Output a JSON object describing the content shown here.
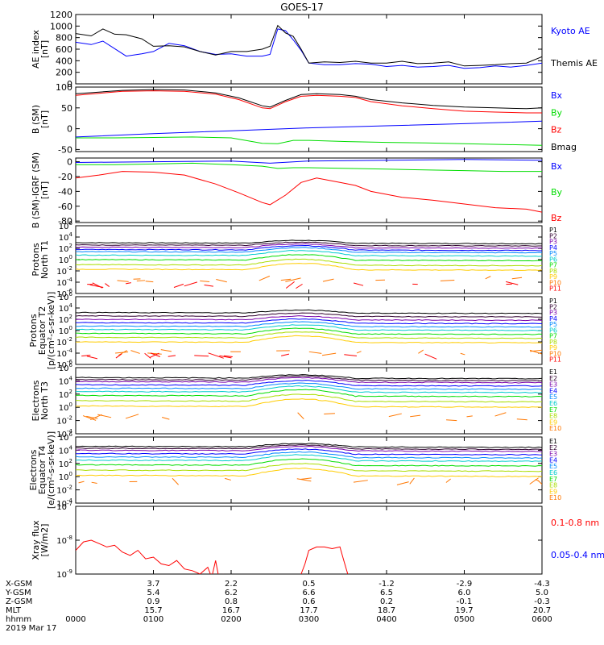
{
  "title": "GOES-17",
  "colors": {
    "black": "#000000",
    "blue": "#0000ff",
    "green": "#00dd00",
    "red": "#ff0000",
    "p": [
      "#000000",
      "#300030",
      "#7a00aa",
      "#0000ff",
      "#0088ff",
      "#00cccc",
      "#00dd00",
      "#aadd00",
      "#ffcc00",
      "#ff7700",
      "#ff0000",
      "#cc0000"
    ],
    "e": [
      "#000000",
      "#300030",
      "#7a00aa",
      "#0000ff",
      "#0088ff",
      "#00cccc",
      "#00dd00",
      "#aadd00",
      "#ffcc00",
      "#ff7700",
      "#cc0000"
    ]
  },
  "chart_data": [
    {
      "type": "line",
      "ylabel": [
        "AE index",
        "[nT]"
      ],
      "yticks": [
        "1200",
        "1000",
        "800",
        "600",
        "400",
        "200",
        "0"
      ],
      "ylim": [
        0,
        1200
      ],
      "legend": [
        {
          "label": "Kyoto AE",
          "color": "blue"
        },
        {
          "label": "Themis AE",
          "color": "black"
        }
      ],
      "series": [
        {
          "name": "Kyoto AE",
          "color": "blue",
          "x": [
            0,
            0.2,
            0.35,
            0.5,
            0.65,
            0.85,
            1.0,
            1.2,
            1.4,
            1.6,
            1.8,
            2.0,
            2.2,
            2.4,
            2.5,
            2.6,
            2.7,
            2.8,
            2.9,
            3.0,
            3.2,
            3.4,
            3.6,
            3.8,
            4.0,
            4.2,
            4.4,
            4.6,
            4.8,
            5.0,
            5.2,
            5.4,
            5.6,
            5.8,
            6.0
          ],
          "y": [
            720,
            680,
            740,
            610,
            480,
            520,
            560,
            700,
            660,
            560,
            510,
            520,
            480,
            480,
            510,
            950,
            920,
            760,
            580,
            360,
            330,
            330,
            350,
            340,
            300,
            320,
            290,
            300,
            320,
            270,
            280,
            310,
            290,
            320,
            360
          ]
        },
        {
          "name": "Themis AE",
          "color": "black",
          "x": [
            0,
            0.2,
            0.35,
            0.5,
            0.65,
            0.85,
            1.0,
            1.2,
            1.4,
            1.6,
            1.8,
            2.0,
            2.2,
            2.4,
            2.5,
            2.6,
            2.7,
            2.8,
            2.9,
            3.0,
            3.2,
            3.4,
            3.6,
            3.8,
            4.0,
            4.2,
            4.4,
            4.6,
            4.8,
            5.0,
            5.2,
            5.4,
            5.6,
            5.8,
            6.0
          ],
          "y": [
            870,
            830,
            950,
            860,
            850,
            780,
            650,
            660,
            640,
            560,
            500,
            560,
            560,
            600,
            650,
            1010,
            880,
            820,
            600,
            360,
            380,
            370,
            390,
            360,
            360,
            390,
            350,
            360,
            380,
            310,
            320,
            330,
            350,
            360,
            470
          ]
        }
      ]
    },
    {
      "type": "line",
      "ylabel": [
        "B (SM)",
        "[nT]"
      ],
      "yticks": [
        "100",
        "50",
        "0",
        "-50"
      ],
      "ylim": [
        -55,
        100
      ],
      "legend": [
        {
          "label": "Bx",
          "color": "blue"
        },
        {
          "label": "By",
          "color": "green"
        },
        {
          "label": "Bz",
          "color": "red"
        },
        {
          "label": "Bmag",
          "color": "black"
        }
      ],
      "series": [
        {
          "name": "Bx",
          "color": "blue",
          "x": [
            0,
            1,
            2,
            3,
            4,
            5,
            6
          ],
          "y": [
            -20,
            -12,
            -5,
            2,
            7,
            12,
            18
          ]
        },
        {
          "name": "By",
          "color": "green",
          "x": [
            0,
            0.5,
            1,
            1.5,
            2,
            2.4,
            2.6,
            2.8,
            3,
            3.5,
            4,
            4.5,
            5,
            5.5,
            6
          ],
          "y": [
            -22,
            -22,
            -21,
            -20,
            -22,
            -35,
            -36,
            -28,
            -28,
            -31,
            -33,
            -34,
            -36,
            -38,
            -40
          ]
        },
        {
          "name": "Bz",
          "color": "red",
          "x": [
            0,
            0.3,
            0.6,
            1,
            1.4,
            1.8,
            2.1,
            2.4,
            2.5,
            2.7,
            2.9,
            3.1,
            3.4,
            3.6,
            3.8,
            4.2,
            4.6,
            5,
            5.4,
            5.8,
            6
          ],
          "y": [
            80,
            85,
            90,
            91,
            90,
            83,
            70,
            50,
            48,
            65,
            78,
            80,
            78,
            75,
            65,
            55,
            48,
            42,
            40,
            38,
            38
          ]
        },
        {
          "name": "Bmag",
          "color": "black",
          "x": [
            0,
            0.3,
            0.6,
            1,
            1.4,
            1.8,
            2.1,
            2.4,
            2.5,
            2.7,
            2.9,
            3.1,
            3.4,
            3.6,
            3.8,
            4.2,
            4.6,
            5,
            5.4,
            5.8,
            6
          ],
          "y": [
            84,
            88,
            92,
            94,
            93,
            86,
            74,
            55,
            52,
            68,
            82,
            84,
            82,
            78,
            70,
            62,
            56,
            52,
            50,
            48,
            50
          ]
        }
      ]
    },
    {
      "type": "line",
      "ylabel": [
        "B (SM)-IGRF (SM)",
        "[nT]"
      ],
      "yticks": [
        "0",
        "-20",
        "-40",
        "-60",
        "-80"
      ],
      "ylim": [
        -82,
        5
      ],
      "legend": [
        {
          "label": "Bx",
          "color": "blue"
        },
        {
          "label": "By",
          "color": "green"
        },
        {
          "label": "Bz",
          "color": "red"
        }
      ],
      "series": [
        {
          "name": "Bx",
          "color": "blue",
          "x": [
            0,
            1,
            2,
            2.5,
            3,
            4,
            5,
            6
          ],
          "y": [
            -1,
            0,
            1,
            -2,
            1,
            2,
            3,
            2
          ]
        },
        {
          "name": "By",
          "color": "green",
          "x": [
            0,
            0.5,
            1,
            1.5,
            2,
            2.4,
            2.6,
            2.8,
            3,
            3.5,
            4,
            4.5,
            5,
            5.5,
            6
          ],
          "y": [
            -4,
            -4,
            -3,
            -2,
            -4,
            -6,
            -9,
            -8,
            -8,
            -9,
            -10,
            -11,
            -12,
            -13,
            -13
          ]
        },
        {
          "name": "Bz",
          "color": "red",
          "x": [
            0,
            0.3,
            0.6,
            1,
            1.4,
            1.8,
            2.1,
            2.4,
            2.5,
            2.7,
            2.9,
            3.1,
            3.4,
            3.6,
            3.8,
            4.2,
            4.6,
            5,
            5.4,
            5.8,
            6
          ],
          "y": [
            -22,
            -18,
            -13,
            -14,
            -18,
            -30,
            -42,
            -55,
            -58,
            -45,
            -28,
            -22,
            -28,
            -32,
            -40,
            -48,
            -52,
            -57,
            -62,
            -64,
            -68
          ]
        }
      ]
    },
    {
      "type": "line",
      "ylabel": [
        "Protons",
        "North T1"
      ],
      "ylog": true,
      "ylim": [
        -6,
        6
      ],
      "yticks": [
        {
          "b": "10",
          "e": "6"
        },
        {
          "b": "10",
          "e": "4"
        },
        {
          "b": "10",
          "e": "2"
        },
        {
          "b": "10",
          "e": "0"
        },
        {
          "b": "10",
          "e": "-2"
        },
        {
          "b": "10",
          "e": "-4"
        },
        {
          "b": "10",
          "e": "-6"
        }
      ],
      "legend": [
        "P1",
        "P2",
        "P3",
        "P4",
        "P5",
        "P6",
        "P7",
        "P8",
        "P9",
        "P10",
        "P11"
      ],
      "base": [
        3.0,
        2.6,
        2.2,
        1.8,
        1.4,
        0.8,
        0.0,
        -0.9,
        -1.7,
        -3.5,
        -4.5
      ]
    },
    {
      "type": "line",
      "ylabel": [
        "Protons",
        "Equator T2",
        "[p/(cm²-s-sr-keV)]"
      ],
      "ylog": true,
      "ylim": [
        -6,
        6
      ],
      "yticks": [
        {
          "b": "10",
          "e": "6"
        },
        {
          "b": "10",
          "e": "4"
        },
        {
          "b": "10",
          "e": "2"
        },
        {
          "b": "10",
          "e": "0"
        },
        {
          "b": "10",
          "e": "-2"
        },
        {
          "b": "10",
          "e": "-4"
        },
        {
          "b": "10",
          "e": "-6"
        }
      ],
      "legend": [
        "P1",
        "P2",
        "P3",
        "P4",
        "P5",
        "P6",
        "P7",
        "P8",
        "P9",
        "P10",
        "P11"
      ],
      "base": [
        3.2,
        2.6,
        2.0,
        1.4,
        0.8,
        0.2,
        -0.5,
        -1.2,
        -2.0,
        -3.8,
        -4.5
      ]
    },
    {
      "type": "line",
      "ylabel": [
        "Electrons",
        "North T3"
      ],
      "ylog": true,
      "ylim": [
        -4,
        6
      ],
      "yticks": [
        {
          "b": "10",
          "e": "6"
        },
        {
          "b": "10",
          "e": "4"
        },
        {
          "b": "10",
          "e": "2"
        },
        {
          "b": "10",
          "e": "0"
        },
        {
          "b": "10",
          "e": "-2"
        },
        {
          "b": "10",
          "e": "-4"
        }
      ],
      "legend": [
        "E1",
        "E2",
        "E3",
        "E4",
        "E5",
        "E6",
        "E7",
        "E8",
        "E9",
        "E10"
      ],
      "base": [
        4.5,
        4.2,
        3.9,
        3.4,
        2.9,
        2.4,
        1.8,
        1.0,
        0.2,
        -1.4
      ]
    },
    {
      "type": "line",
      "ylabel": [
        "Electrons",
        "Equator T4",
        "[e/(cm²-s-sr-keV)]"
      ],
      "ylog": true,
      "ylim": [
        -4,
        6
      ],
      "yticks": [
        {
          "b": "10",
          "e": "6"
        },
        {
          "b": "10",
          "e": "4"
        },
        {
          "b": "10",
          "e": "2"
        },
        {
          "b": "10",
          "e": "0"
        },
        {
          "b": "10",
          "e": "-2"
        },
        {
          "b": "10",
          "e": "-4"
        }
      ],
      "legend": [
        "E1",
        "E2",
        "E3",
        "E4",
        "E5",
        "E6",
        "E7",
        "E8",
        "E9",
        "E10"
      ],
      "base": [
        4.6,
        4.3,
        4.0,
        3.5,
        3.0,
        2.5,
        1.8,
        1.0,
        0.2,
        -0.8
      ]
    },
    {
      "type": "line",
      "ylabel": [
        "Xray flux",
        "[W/m2]"
      ],
      "ylog": true,
      "ylim": [
        -9,
        -7
      ],
      "yticks": [
        {
          "b": "10",
          "e": "-7"
        },
        {
          "b": "10",
          "e": "-8"
        },
        {
          "b": "10",
          "e": "-9"
        }
      ],
      "legend": [
        {
          "label": "0.1-0.8 nm",
          "color": "red"
        },
        {
          "label": "0.05-0.4 nm",
          "color": "blue"
        }
      ],
      "series": [
        {
          "name": "0.1-0.8 nm",
          "color": "red",
          "x": [
            0,
            0.1,
            0.2,
            0.3,
            0.4,
            0.5,
            0.6,
            0.7,
            0.8,
            0.9,
            1.0,
            1.1,
            1.2,
            1.3,
            1.4,
            1.5,
            1.6,
            1.7,
            1.75,
            1.8,
            1.85,
            1.9
          ],
          "y": [
            -8.3,
            -8.05,
            -8.0,
            -8.1,
            -8.2,
            -8.15,
            -8.35,
            -8.45,
            -8.3,
            -8.55,
            -8.5,
            -8.7,
            -8.75,
            -8.6,
            -8.85,
            -8.9,
            -9.0,
            -8.8,
            -9.1,
            -8.6,
            -9.2,
            -9.0
          ]
        },
        {
          "name": "0.1-0.8 nm",
          "color": "red",
          "x": [
            2.9,
            2.95,
            3.0,
            3.05,
            3.1,
            3.2,
            3.3,
            3.4,
            3.45,
            3.5
          ],
          "y": [
            -9.0,
            -8.7,
            -8.3,
            -8.25,
            -8.2,
            -8.2,
            -8.25,
            -8.2,
            -8.6,
            -9.0
          ]
        }
      ]
    }
  ],
  "xaxis": {
    "range": [
      0,
      6
    ],
    "rows": [
      {
        "label": "X-GSM",
        "values": [
          "",
          "3.7",
          "2.2",
          "0.5",
          "-1.2",
          "-2.9",
          "-4.3"
        ]
      },
      {
        "label": "Y-GSM",
        "values": [
          "",
          "5.4",
          "6.2",
          "6.6",
          "6.5",
          "6.0",
          "5.0"
        ]
      },
      {
        "label": "Z-GSM",
        "values": [
          "",
          "0.9",
          "0.8",
          "0.6",
          "0.2",
          "-0.1",
          "-0.3"
        ]
      },
      {
        "label": "MLT",
        "values": [
          "",
          "15.7",
          "16.7",
          "17.7",
          "18.7",
          "19.7",
          "20.7"
        ]
      },
      {
        "label": "hhmm",
        "values": [
          "0000",
          "0100",
          "0200",
          "0300",
          "0400",
          "0500",
          "0600"
        ]
      }
    ],
    "date": "2019 Mar 17"
  }
}
